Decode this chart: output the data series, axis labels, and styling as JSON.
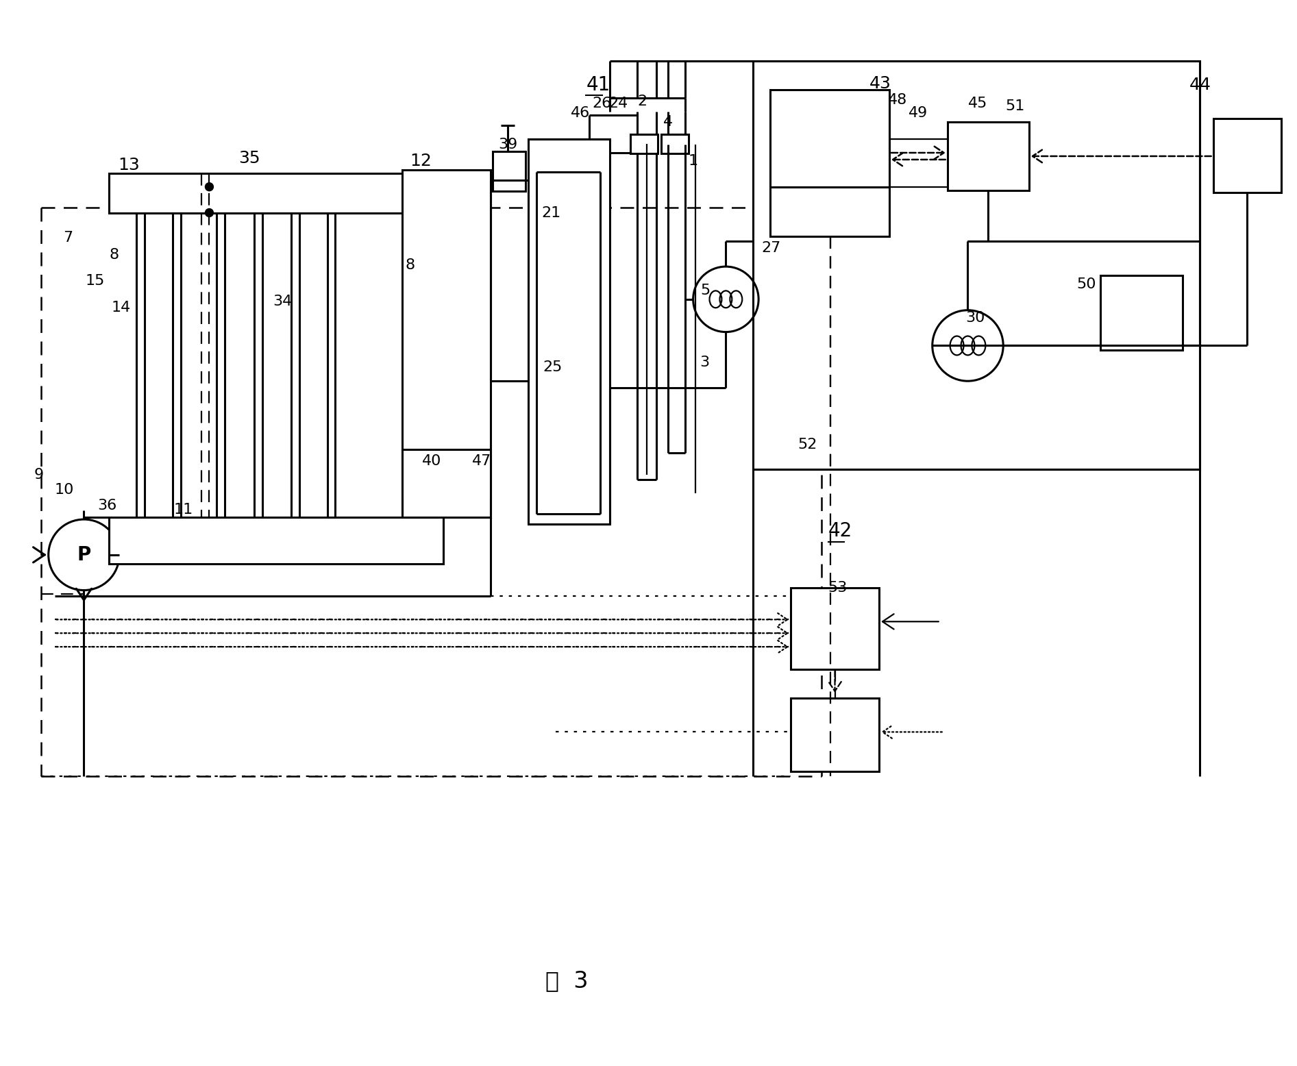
{
  "bg_color": "#ffffff",
  "line_color": "#000000",
  "title": "図  3",
  "fig_width": 18.93,
  "fig_height": 15.56
}
